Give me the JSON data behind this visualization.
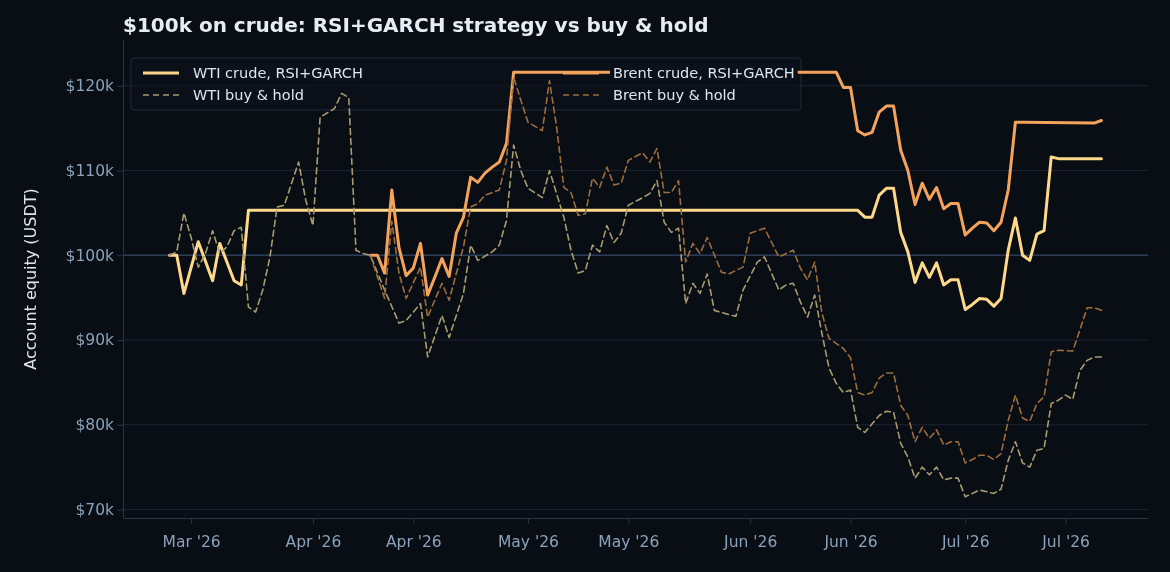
{
  "chart_data": {
    "type": "line",
    "title": "$100k on crude: RSI+GARCH strategy vs buy & hold",
    "ylabel": "Account equity (USDT)",
    "xlim": [
      "2026-03-05T12:00",
      "2026-07-26T12:00"
    ],
    "xticks": [
      {
        "value": "2026-03-15",
        "label": "Mar '26"
      },
      {
        "value": "2026-04-01",
        "label": "Apr '26"
      },
      {
        "value": "2026-04-15",
        "label": "Apr '26"
      },
      {
        "value": "2026-05-01",
        "label": "May '26"
      },
      {
        "value": "2026-05-15",
        "label": "May '26"
      },
      {
        "value": "2026-06-01",
        "label": "Jun '26"
      },
      {
        "value": "2026-06-15",
        "label": "Jun '26"
      },
      {
        "value": "2026-07-01",
        "label": "Jul '26"
      },
      {
        "value": "2026-07-15",
        "label": "Jul '26"
      }
    ],
    "ylim": [
      69,
      125.4
    ],
    "yticks": [
      {
        "value": 70,
        "label": "$70k"
      },
      {
        "value": 80,
        "label": "$80k"
      },
      {
        "value": 90,
        "label": "$90k"
      },
      {
        "value": 100,
        "label": "$100k"
      },
      {
        "value": 110,
        "label": "$110k"
      },
      {
        "value": 120,
        "label": "$120k"
      }
    ],
    "grid": "y",
    "legend": "top left",
    "ref_lines": [
      {
        "axis": "y",
        "value": 100,
        "label": null,
        "color": "#2c3b58"
      }
    ],
    "series": [
      {
        "name": "WTI crude, RSI+GARCH",
        "color": "#ffd98a",
        "line_style": "solid",
        "x": [
          "2026-03-12",
          "2026-03-13",
          "2026-03-14",
          "2026-03-16",
          "2026-03-18",
          "2026-03-19",
          "2026-03-21",
          "2026-03-22",
          "2026-03-23",
          "2026-06-15",
          "2026-06-16",
          "2026-06-17",
          "2026-06-18",
          "2026-06-19",
          "2026-06-20",
          "2026-06-21",
          "2026-06-22",
          "2026-06-23",
          "2026-06-24",
          "2026-06-25",
          "2026-06-26",
          "2026-06-27",
          "2026-06-28",
          "2026-06-29",
          "2026-06-30",
          "2026-07-01",
          "2026-07-02",
          "2026-07-03",
          "2026-07-04",
          "2026-07-05",
          "2026-07-06",
          "2026-07-07",
          "2026-07-08",
          "2026-07-09",
          "2026-07-10",
          "2026-07-11",
          "2026-07-12",
          "2026-07-13",
          "2026-07-14",
          "2026-07-20"
        ],
        "values": [
          100.0,
          100.0,
          95.5,
          101.6,
          97.0,
          101.4,
          97.0,
          96.5,
          105.3,
          105.3,
          105.3,
          104.5,
          104.5,
          107.1,
          107.9,
          107.9,
          102.7,
          100.4,
          96.8,
          99.1,
          97.4,
          99.1,
          96.5,
          97.1,
          97.1,
          93.6,
          94.2,
          94.9,
          94.8,
          94.0,
          94.9,
          100.6,
          104.4,
          100.0,
          99.4,
          102.5,
          102.9,
          111.6,
          111.4,
          111.4
        ]
      },
      {
        "name": "WTI buy & hold",
        "color": "#a99b70",
        "line_style": "dashed",
        "x": [
          "2026-03-12",
          "2026-03-13",
          "2026-03-14",
          "2026-03-15",
          "2026-03-16",
          "2026-03-17",
          "2026-03-18",
          "2026-03-19",
          "2026-03-20",
          "2026-03-21",
          "2026-03-22",
          "2026-03-23",
          "2026-03-24",
          "2026-03-25",
          "2026-03-26",
          "2026-03-27",
          "2026-03-28",
          "2026-03-30",
          "2026-03-31",
          "2026-04-01",
          "2026-04-02",
          "2026-04-04",
          "2026-04-05",
          "2026-04-06",
          "2026-04-07",
          "2026-04-08",
          "2026-04-09",
          "2026-04-11",
          "2026-04-13",
          "2026-04-14",
          "2026-04-16",
          "2026-04-17",
          "2026-04-19",
          "2026-04-20",
          "2026-04-22",
          "2026-04-23",
          "2026-04-24",
          "2026-04-26",
          "2026-04-27",
          "2026-04-28",
          "2026-04-29",
          "2026-04-30",
          "2026-05-01",
          "2026-05-03",
          "2026-05-04",
          "2026-05-06",
          "2026-05-07",
          "2026-05-08",
          "2026-05-09",
          "2026-05-10",
          "2026-05-11",
          "2026-05-12",
          "2026-05-13",
          "2026-05-14",
          "2026-05-15",
          "2026-05-17",
          "2026-05-18",
          "2026-05-19",
          "2026-05-20",
          "2026-05-21",
          "2026-05-22",
          "2026-05-23",
          "2026-05-24",
          "2026-05-25",
          "2026-05-26",
          "2026-05-27",
          "2026-05-29",
          "2026-05-30",
          "2026-05-31",
          "2026-06-02",
          "2026-06-03",
          "2026-06-05",
          "2026-06-06",
          "2026-06-07",
          "2026-06-08",
          "2026-06-09",
          "2026-06-10",
          "2026-06-11",
          "2026-06-12",
          "2026-06-13",
          "2026-06-14",
          "2026-06-15",
          "2026-06-16",
          "2026-06-17",
          "2026-06-19",
          "2026-06-20",
          "2026-06-21",
          "2026-06-22",
          "2026-06-23",
          "2026-06-24",
          "2026-06-25",
          "2026-06-26",
          "2026-06-27",
          "2026-06-28",
          "2026-06-29",
          "2026-06-30",
          "2026-07-01",
          "2026-07-02",
          "2026-07-03",
          "2026-07-05",
          "2026-07-06",
          "2026-07-07",
          "2026-07-08",
          "2026-07-09",
          "2026-07-10",
          "2026-07-11",
          "2026-07-12",
          "2026-07-13",
          "2026-07-14",
          "2026-07-15",
          "2026-07-16",
          "2026-07-17",
          "2026-07-18",
          "2026-07-19",
          "2026-07-20"
        ],
        "values": [
          100.0,
          100.4,
          105.0,
          102.1,
          98.6,
          100.2,
          102.9,
          100.2,
          101.0,
          102.9,
          103.3,
          93.9,
          93.3,
          95.9,
          99.8,
          105.7,
          105.9,
          111.0,
          106.5,
          103.5,
          116.3,
          117.3,
          119.1,
          118.6,
          100.6,
          100.2,
          100.0,
          95.9,
          92.0,
          92.3,
          94.3,
          88.0,
          92.9,
          90.3,
          95.5,
          101.2,
          99.4,
          100.4,
          101.2,
          104.1,
          113.0,
          110.0,
          107.9,
          106.8,
          110.0,
          104.5,
          100.6,
          97.9,
          98.2,
          101.2,
          100.4,
          103.5,
          101.5,
          102.6,
          105.9,
          106.8,
          107.3,
          108.8,
          103.9,
          102.7,
          103.2,
          94.3,
          96.7,
          95.5,
          97.8,
          93.5,
          93.0,
          92.8,
          95.9,
          99.2,
          99.8,
          95.9,
          96.5,
          96.7,
          94.5,
          92.7,
          95.3,
          90.8,
          86.7,
          84.9,
          83.8,
          84.1,
          79.7,
          79.1,
          81.1,
          81.6,
          81.5,
          77.8,
          76.2,
          73.7,
          75.0,
          74.1,
          75.0,
          73.5,
          73.7,
          73.7,
          71.5,
          71.9,
          72.3,
          71.9,
          72.4,
          75.8,
          78.0,
          75.5,
          75.0,
          77.0,
          77.2,
          82.5,
          82.9,
          83.5,
          83.0,
          86.4,
          87.6,
          88.0,
          88.0
        ]
      },
      {
        "name": "Brent crude, RSI+GARCH",
        "color": "#f4a35c",
        "line_style": "solid",
        "x": [
          "2026-04-09",
          "2026-04-10",
          "2026-04-11",
          "2026-04-12",
          "2026-04-13",
          "2026-04-14",
          "2026-04-15",
          "2026-04-16",
          "2026-04-17",
          "2026-04-18",
          "2026-04-19",
          "2026-04-20",
          "2026-04-21",
          "2026-04-22",
          "2026-04-23",
          "2026-04-24",
          "2026-04-25",
          "2026-04-26",
          "2026-04-27",
          "2026-04-28",
          "2026-04-29",
          "2026-06-13",
          "2026-06-14",
          "2026-06-15",
          "2026-06-16",
          "2026-06-17",
          "2026-06-18",
          "2026-06-19",
          "2026-06-20",
          "2026-06-21",
          "2026-06-22",
          "2026-06-23",
          "2026-06-24",
          "2026-06-25",
          "2026-06-26",
          "2026-06-27",
          "2026-06-28",
          "2026-06-29",
          "2026-06-30",
          "2026-07-01",
          "2026-07-02",
          "2026-07-03",
          "2026-07-04",
          "2026-07-05",
          "2026-07-06",
          "2026-07-07",
          "2026-07-08",
          "2026-07-09",
          "2026-07-19",
          "2026-07-20"
        ],
        "values": [
          100.0,
          100.0,
          97.9,
          107.7,
          100.9,
          97.6,
          98.5,
          101.4,
          95.3,
          97.4,
          99.6,
          97.5,
          102.6,
          104.5,
          109.2,
          108.6,
          109.7,
          110.4,
          111.0,
          113.2,
          121.6,
          121.6,
          119.8,
          119.8,
          114.7,
          114.2,
          114.5,
          116.9,
          117.6,
          117.6,
          112.4,
          110.0,
          106.0,
          108.5,
          106.6,
          108.0,
          105.5,
          106.1,
          106.1,
          102.4,
          103.2,
          103.9,
          103.8,
          102.9,
          103.9,
          107.7,
          115.7,
          115.7,
          115.6,
          115.9
        ]
      },
      {
        "name": "Brent buy & hold",
        "color": "#9d6d3d",
        "line_style": "dashed",
        "x": [
          "2026-04-09",
          "2026-04-11",
          "2026-04-12",
          "2026-04-13",
          "2026-04-14",
          "2026-04-16",
          "2026-04-17",
          "2026-04-19",
          "2026-04-20",
          "2026-04-22",
          "2026-04-23",
          "2026-04-24",
          "2026-04-25",
          "2026-04-27",
          "2026-04-28",
          "2026-04-29",
          "2026-04-30",
          "2026-05-01",
          "2026-05-03",
          "2026-05-04",
          "2026-05-05",
          "2026-05-06",
          "2026-05-07",
          "2026-05-08",
          "2026-05-09",
          "2026-05-10",
          "2026-05-11",
          "2026-05-12",
          "2026-05-13",
          "2026-05-14",
          "2026-05-15",
          "2026-05-17",
          "2026-05-18",
          "2026-05-19",
          "2026-05-20",
          "2026-05-21",
          "2026-05-22",
          "2026-05-23",
          "2026-05-24",
          "2026-05-25",
          "2026-05-26",
          "2026-05-28",
          "2026-05-29",
          "2026-05-31",
          "2026-06-01",
          "2026-06-03",
          "2026-06-05",
          "2026-06-07",
          "2026-06-08",
          "2026-06-09",
          "2026-06-10",
          "2026-06-11",
          "2026-06-12",
          "2026-06-14",
          "2026-06-15",
          "2026-06-16",
          "2026-06-17",
          "2026-06-18",
          "2026-06-19",
          "2026-06-20",
          "2026-06-21",
          "2026-06-22",
          "2026-06-23",
          "2026-06-24",
          "2026-06-25",
          "2026-06-26",
          "2026-06-27",
          "2026-06-28",
          "2026-06-29",
          "2026-06-30",
          "2026-07-01",
          "2026-07-02",
          "2026-07-03",
          "2026-07-04",
          "2026-07-05",
          "2026-07-06",
          "2026-07-07",
          "2026-07-08",
          "2026-07-09",
          "2026-07-10",
          "2026-07-11",
          "2026-07-12",
          "2026-07-13",
          "2026-07-14",
          "2026-07-16",
          "2026-07-17",
          "2026-07-18",
          "2026-07-19",
          "2026-07-20"
        ],
        "values": [
          100.0,
          94.9,
          104.0,
          97.9,
          94.9,
          98.6,
          92.7,
          96.7,
          94.7,
          101.0,
          105.7,
          106.1,
          107.1,
          107.7,
          111.2,
          121.0,
          118.3,
          115.7,
          114.7,
          120.6,
          115.1,
          108.0,
          107.4,
          104.7,
          104.9,
          109.1,
          108.0,
          110.4,
          108.3,
          108.5,
          111.2,
          112.1,
          111.0,
          112.6,
          107.4,
          107.4,
          108.8,
          99.2,
          101.4,
          100.2,
          102.1,
          98.0,
          97.8,
          98.6,
          102.6,
          103.2,
          99.8,
          100.6,
          98.5,
          97.1,
          99.2,
          93.2,
          90.2,
          89.0,
          87.9,
          83.8,
          83.5,
          83.8,
          85.5,
          86.1,
          86.1,
          82.3,
          81.1,
          78.0,
          79.7,
          78.4,
          79.4,
          77.6,
          78.0,
          78.0,
          75.5,
          75.9,
          76.4,
          76.4,
          75.9,
          76.6,
          80.5,
          83.5,
          80.8,
          80.4,
          82.5,
          83.3,
          88.6,
          88.8,
          88.7,
          91.2,
          93.8,
          93.8,
          93.5
        ]
      }
    ]
  }
}
